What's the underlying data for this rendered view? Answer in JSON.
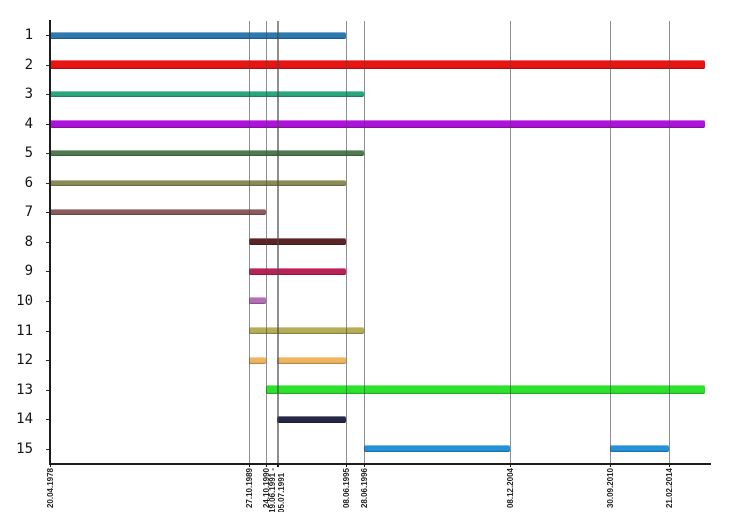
{
  "chart_data": {
    "type": "gantt",
    "title": "",
    "xlabel": "",
    "ylabel": "",
    "grid": true,
    "legend": false,
    "axis_start_date": "20.04.1978",
    "axis_last_labeled_date": "21.02.2014",
    "x_ticks": [
      {
        "label": "20.04.1978",
        "dates": [
          "20.04.1978"
        ]
      },
      {
        "label": "27.10.1989",
        "dates": [
          "27.10.1989"
        ]
      },
      {
        "label": "24.10.1990",
        "dates": [
          "24.10.1990"
        ]
      },
      {
        "label": "19.06.1991 -",
        "label2": "05.07.1991",
        "dates": [
          "19.06.1991",
          "05.07.1991"
        ]
      },
      {
        "label": "08.06.1995",
        "dates": [
          "08.06.1995"
        ]
      },
      {
        "label": "28.06.1996",
        "dates": [
          "28.06.1996"
        ]
      },
      {
        "label": "08.12.2004",
        "dates": [
          "08.12.2004"
        ]
      },
      {
        "label": "30.09.2010",
        "dates": [
          "30.09.2010"
        ]
      },
      {
        "label": "21.02.2014",
        "dates": [
          "21.02.2014"
        ]
      }
    ],
    "rows": [
      {
        "label": "1",
        "color": "#2e79ad",
        "thickness": 7,
        "segments": [
          {
            "start": "20.04.1978",
            "end": "08.06.1995"
          }
        ]
      },
      {
        "label": "2",
        "color": "#e81313",
        "thickness": 9,
        "segments": [
          {
            "start": "20.04.1978",
            "end": null,
            "extends_beyond_axis": true
          }
        ]
      },
      {
        "label": "3",
        "color": "#28a87c",
        "thickness": 6,
        "segments": [
          {
            "start": "20.04.1978",
            "end": "28.06.1996"
          }
        ]
      },
      {
        "label": "4",
        "color": "#ad13d8",
        "thickness": 8,
        "segments": [
          {
            "start": "20.04.1978",
            "end": null,
            "extends_beyond_axis": true
          }
        ]
      },
      {
        "label": "5",
        "color": "#4f7a52",
        "thickness": 6,
        "segments": [
          {
            "start": "20.04.1978",
            "end": "28.06.1996"
          }
        ]
      },
      {
        "label": "6",
        "color": "#8b8b58",
        "thickness": 6,
        "segments": [
          {
            "start": "20.04.1978",
            "end": "08.06.1995"
          }
        ]
      },
      {
        "label": "7",
        "color": "#8c5c5c",
        "thickness": 6,
        "segments": [
          {
            "start": "20.04.1978",
            "end": "24.10.1990"
          }
        ]
      },
      {
        "label": "8",
        "color": "#5c2525",
        "thickness": 7,
        "segments": [
          {
            "start": "27.10.1989",
            "end": "08.06.1995"
          }
        ]
      },
      {
        "label": "9",
        "color": "#bc2254",
        "thickness": 7,
        "segments": [
          {
            "start": "27.10.1989",
            "end": "08.06.1995"
          }
        ]
      },
      {
        "label": "10",
        "color": "#b66fb6",
        "thickness": 7,
        "segments": [
          {
            "start": "27.10.1989",
            "end": "24.10.1990"
          }
        ]
      },
      {
        "label": "11",
        "color": "#b5ad57",
        "thickness": 7,
        "segments": [
          {
            "start": "27.10.1989",
            "end": "28.06.1996"
          }
        ]
      },
      {
        "label": "12",
        "color": "#f0b45f",
        "thickness": 7,
        "segments": [
          {
            "start": "27.10.1989",
            "end": "24.10.1990"
          },
          {
            "start": "19.06.1991",
            "end": "08.06.1995"
          }
        ]
      },
      {
        "label": "13",
        "color": "#2ce22c",
        "thickness": 9,
        "segments": [
          {
            "start": "24.10.1990",
            "end": null,
            "extends_beyond_axis": true
          }
        ]
      },
      {
        "label": "14",
        "color": "#272747",
        "thickness": 7,
        "segments": [
          {
            "start": "19.06.1991",
            "end": "08.06.1995"
          }
        ]
      },
      {
        "label": "15",
        "color": "#2492d8",
        "thickness": 7,
        "segments": [
          {
            "start": "28.06.1996",
            "end": "08.12.2004"
          },
          {
            "start": "30.09.2010",
            "end": "21.02.2014"
          }
        ]
      }
    ]
  }
}
